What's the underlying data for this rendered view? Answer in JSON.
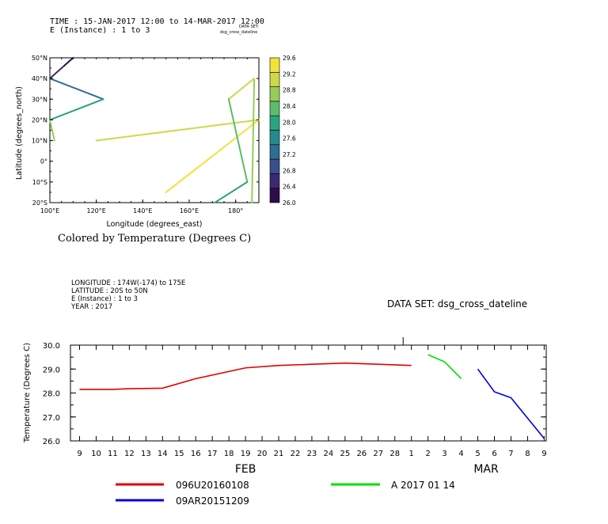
{
  "top": {
    "header": {
      "time": "TIME : 15-JAN-2017 12:00 to 14-MAR-2017 12:00",
      "instance": "E (Instance) : 1 to 3",
      "dataset_label": "DATA SET:",
      "dataset_name": "dsg_cross_dateline"
    },
    "caption": "Colored by Temperature (Degrees C)"
  },
  "bottom": {
    "header": {
      "longitude": "LONGITUDE : 174W(-174) to 175E",
      "latitude": "LATITUDE : 20S to 50N",
      "instance": "E (Instance) : 1 to 3",
      "year": "YEAR : 2017"
    },
    "dataset": "DATA SET: dsg_cross_dateline"
  },
  "chart_data": [
    {
      "type": "line",
      "subtype": "trajectory",
      "xlabel": "Longitude (degrees_east)",
      "ylabel": "Latitude (degrees_north)",
      "xlim": [
        100,
        190
      ],
      "ylim": [
        -20,
        50
      ],
      "x_ticks": [
        {
          "v": 100,
          "label": "100°E"
        },
        {
          "v": 120,
          "label": "120°E"
        },
        {
          "v": 140,
          "label": "140°E"
        },
        {
          "v": 160,
          "label": "160°E"
        },
        {
          "v": 180,
          "label": "180°"
        }
      ],
      "y_ticks": [
        {
          "v": 50,
          "label": "50°N"
        },
        {
          "v": 40,
          "label": "40°N"
        },
        {
          "v": 30,
          "label": "30°N"
        },
        {
          "v": 20,
          "label": "20°N"
        },
        {
          "v": 10,
          "label": "10°N"
        },
        {
          "v": 0,
          "label": "0°"
        },
        {
          "v": -10,
          "label": "10°S"
        },
        {
          "v": -20,
          "label": "20°S"
        }
      ],
      "colorbar": {
        "min": 26.0,
        "max": 29.6,
        "step": 0.4,
        "labels": [
          "29.6",
          "29.2",
          "28.8",
          "28.4",
          "28.0",
          "27.6",
          "27.2",
          "26.8",
          "26.4",
          "26.0"
        ],
        "colors": [
          "#2e0d4a",
          "#3c2a6e",
          "#3a4f8c",
          "#2f6e92",
          "#268a8c",
          "#2aa47c",
          "#5cbc6a",
          "#98cc56",
          "#cfd84a",
          "#f2e23c"
        ]
      },
      "segments": [
        {
          "lon1": 110,
          "lat1": 50,
          "lon2": 106,
          "lat2": 46,
          "temp": 26.1
        },
        {
          "lon1": 106,
          "lat1": 46,
          "lon2": 100,
          "lat2": 40,
          "temp": 26.5
        },
        {
          "lon1": 100,
          "lat1": 40,
          "lon2": 123,
          "lat2": 30,
          "temp": 27.4
        },
        {
          "lon1": 123,
          "lat1": 30,
          "lon2": 100,
          "lat2": 20,
          "temp": 27.8
        },
        {
          "lon1": 100,
          "lat1": 20,
          "lon2": 102,
          "lat2": 10,
          "temp": 28.7
        },
        {
          "lon1": 120,
          "lat1": 10,
          "lon2": 190,
          "lat2": 20,
          "temp": 29.0
        },
        {
          "lon1": 190,
          "lat1": 20,
          "lon2": 150,
          "lat2": -15,
          "temp": 29.3
        },
        {
          "lon1": 188,
          "lat1": 40,
          "lon2": 187,
          "lat2": -20,
          "temp": 28.8
        },
        {
          "lon1": 188,
          "lat1": 40,
          "lon2": 177,
          "lat2": 30,
          "temp": 28.9
        },
        {
          "lon1": 177,
          "lat1": 30,
          "lon2": 185,
          "lat2": -10,
          "temp": 28.5
        },
        {
          "lon1": 185,
          "lat1": -10,
          "lon2": 171,
          "lat2": -20,
          "temp": 27.9
        }
      ]
    },
    {
      "type": "line",
      "xlabel": "",
      "ylabel": "Temperature (Degrees C)",
      "ylim": [
        26.0,
        30.0
      ],
      "y_ticks": [
        "30.0",
        "29.0",
        "28.0",
        "27.0",
        "26.0"
      ],
      "x_day_labels": [
        "9",
        "10",
        "11",
        "12",
        "13",
        "14",
        "15",
        "16",
        "17",
        "18",
        "19",
        "20",
        "21",
        "22",
        "23",
        "24",
        "25",
        "26",
        "27",
        "28",
        "1",
        "2",
        "3",
        "4",
        "5",
        "6",
        "7",
        "8",
        "9"
      ],
      "month_labels": [
        {
          "label": "FEB",
          "at_day_index": 10
        },
        {
          "label": "MAR",
          "at_day_index": 24.5
        }
      ],
      "series": [
        {
          "name": "096U20160108",
          "color": "#e00000",
          "points": [
            [
              0,
              28.15
            ],
            [
              2,
              28.15
            ],
            [
              3,
              28.18
            ],
            [
              5,
              28.2
            ],
            [
              7,
              28.6
            ],
            [
              10,
              29.05
            ],
            [
              12,
              29.15
            ],
            [
              14,
              29.2
            ],
            [
              16,
              29.25
            ],
            [
              18,
              29.2
            ],
            [
              20,
              29.15
            ]
          ]
        },
        {
          "name": "A 2017 01 14",
          "color": "#00e000",
          "points": [
            [
              21,
              29.6
            ],
            [
              22,
              29.3
            ],
            [
              23,
              28.6
            ]
          ]
        },
        {
          "name": "09AR20151209",
          "color": "#0000e0",
          "points": [
            [
              24,
              29.0
            ],
            [
              25,
              28.05
            ],
            [
              26,
              27.8
            ],
            [
              28,
              26.1
            ]
          ]
        }
      ]
    }
  ]
}
